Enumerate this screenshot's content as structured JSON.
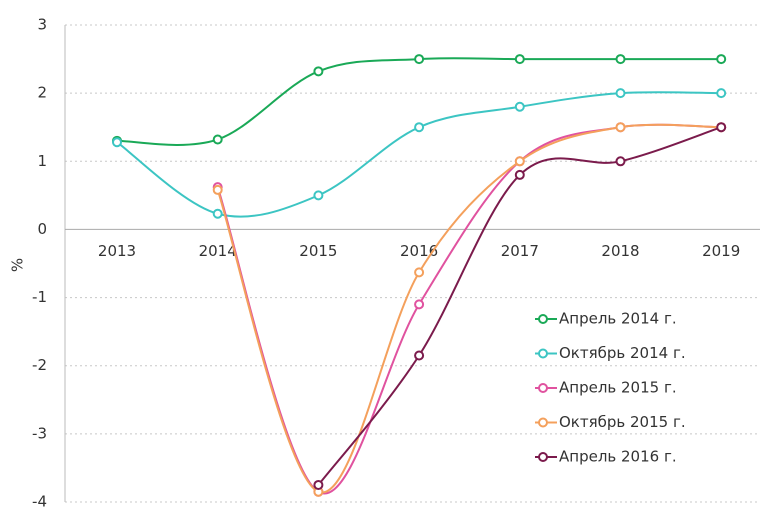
{
  "chart_data": {
    "type": "line",
    "ylabel": "%",
    "categories": [
      "2013",
      "2014",
      "2015",
      "2016",
      "2017",
      "2018",
      "2019"
    ],
    "ylim": [
      -4,
      3
    ],
    "yticks": [
      -4,
      -3,
      -2,
      -1,
      0,
      1,
      2,
      3
    ],
    "grid": true,
    "legend": "lower right",
    "series": [
      {
        "name": "Апрель 2014 г.",
        "color": "#1aa957",
        "values": [
          1.3,
          1.32,
          2.32,
          2.5,
          2.5,
          2.5,
          2.5
        ]
      },
      {
        "name": "Октябрь 2014 г.",
        "color": "#3cc5c3",
        "values": [
          1.28,
          0.23,
          0.5,
          1.5,
          1.8,
          2.0,
          2.0
        ]
      },
      {
        "name": "Апрель 2015 г.",
        "color": "#e0529f",
        "values": [
          null,
          0.62,
          -3.85,
          -1.1,
          1.0,
          1.5,
          1.5
        ]
      },
      {
        "name": "Октябрь 2015 г.",
        "color": "#f4a05c",
        "values": [
          null,
          0.58,
          -3.85,
          -0.63,
          1.0,
          1.5,
          1.5
        ]
      },
      {
        "name": "Апрель 2016 г.",
        "color": "#7b1b4c",
        "values": [
          null,
          null,
          -3.75,
          -1.85,
          0.8,
          1.0,
          1.5
        ]
      }
    ]
  }
}
